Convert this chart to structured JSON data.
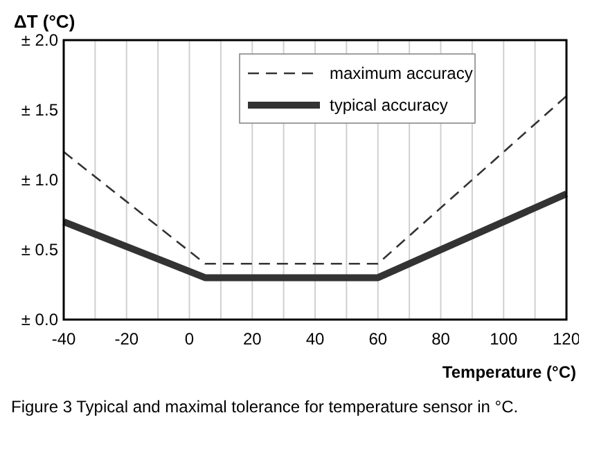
{
  "chart_data": {
    "type": "line",
    "xlabel": "Temperature (°C)",
    "ylabel": "ΔT (°C)",
    "x": [
      -40,
      5,
      60,
      120
    ],
    "series": [
      {
        "name": "maximum accuracy",
        "color": "#333333",
        "line_style": "dashed",
        "values": [
          1.2,
          0.4,
          0.4,
          1.6
        ]
      },
      {
        "name": "typical accuracy",
        "color": "#333333",
        "line_style": "solid",
        "values": [
          0.7,
          0.3,
          0.3,
          0.9
        ]
      }
    ],
    "xlim": [
      -40,
      120
    ],
    "xticks": [
      -40,
      {
        "value": -30,
        "label": null
      },
      -20,
      {
        "value": -10,
        "label": null
      },
      0,
      {
        "value": 10,
        "label": null
      },
      20,
      {
        "value": 30,
        "label": null
      },
      40,
      {
        "value": 50,
        "label": null
      },
      60,
      {
        "value": 70,
        "label": null
      },
      80,
      {
        "value": 90,
        "label": null
      },
      100,
      {
        "value": 110,
        "label": null
      },
      120
    ],
    "ylim": [
      0,
      2
    ],
    "yticks": [
      {
        "value": 0,
        "label": "± 0.0"
      },
      {
        "value": 0.5,
        "label": "± 0.5"
      },
      {
        "value": 1,
        "label": "± 1.0"
      },
      {
        "value": 1.5,
        "label": "± 1.5"
      },
      {
        "value": 2,
        "label": "± 2.0"
      }
    ],
    "grid": "x",
    "legend": "top right",
    "marker": "none",
    "annotations": [
      "Figure 3  Typical and maximal tolerance for temperature sensor in °C."
    ]
  }
}
